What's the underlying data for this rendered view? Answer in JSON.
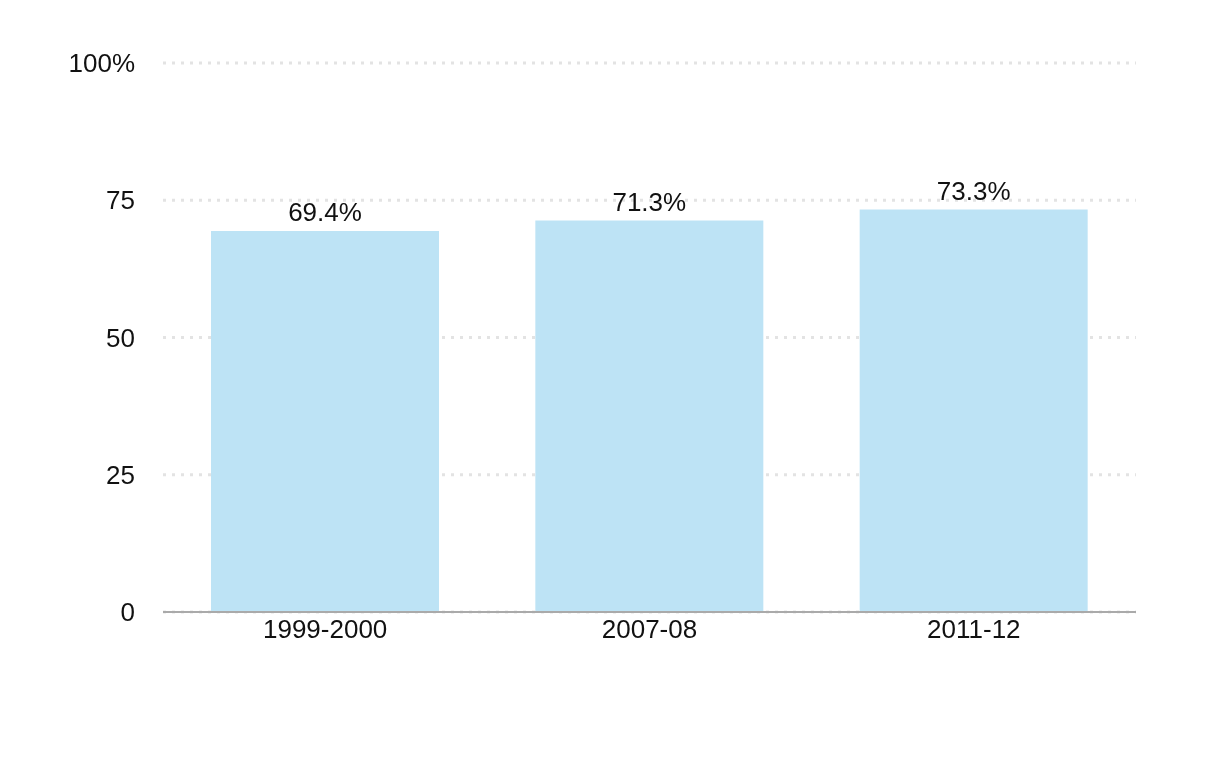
{
  "chart_data": {
    "type": "bar",
    "categories": [
      "1999-2000",
      "2007-08",
      "2011-12"
    ],
    "values": [
      69.4,
      71.3,
      73.3
    ],
    "value_labels": [
      "69.4%",
      "71.3%",
      "73.3%"
    ],
    "color": "#bde3f5",
    "ylim": [
      0,
      100
    ],
    "yticks": [
      0,
      25,
      50,
      75,
      {
        "value": 100,
        "label": "100%"
      }
    ],
    "grid": "y",
    "legend": false
  }
}
